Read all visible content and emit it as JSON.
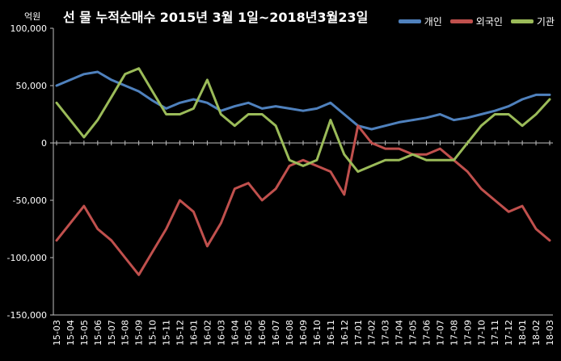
{
  "chart_data": {
    "type": "line",
    "title": "선 물  누적순매수  2015년 3월 1일~2018년3월23일",
    "ylabel": "억원",
    "ylim": [
      -150000,
      100000
    ],
    "yticks": [
      100000,
      50000,
      0,
      -50000,
      -100000,
      -150000
    ],
    "ytick_labels": [
      "100,000",
      "50,000",
      "0",
      "-50,000",
      "-100,000",
      "-150,000"
    ],
    "x": [
      "15-03",
      "15-04",
      "15-05",
      "15-06",
      "15-07",
      "15-08",
      "15-09",
      "15-10",
      "15-11",
      "15-12",
      "16-01",
      "16-02",
      "16-03",
      "16-04",
      "16-05",
      "16-06",
      "16-07",
      "16-08",
      "16-09",
      "16-10",
      "16-11",
      "16-12",
      "17-01",
      "17-02",
      "17-03",
      "17-04",
      "17-05",
      "17-06",
      "17-07",
      "17-08",
      "17-09",
      "17-10",
      "17-11",
      "17-12",
      "18-01",
      "18-02",
      "18-03"
    ],
    "legend_position": "top-right",
    "grid": false,
    "series": [
      {
        "name": "개인",
        "color": "#4f81bd",
        "values": [
          50000,
          55000,
          60000,
          62000,
          55000,
          50000,
          45000,
          37000,
          30000,
          35000,
          38000,
          35000,
          28000,
          32000,
          35000,
          30000,
          32000,
          30000,
          28000,
          30000,
          35000,
          25000,
          15000,
          12000,
          15000,
          18000,
          20000,
          22000,
          25000,
          20000,
          22000,
          25000,
          28000,
          32000,
          38000,
          42000,
          42000
        ]
      },
      {
        "name": "외국인",
        "color": "#c0504d",
        "values": [
          -85000,
          -70000,
          -55000,
          -75000,
          -85000,
          -100000,
          -115000,
          -95000,
          -75000,
          -50000,
          -60000,
          -90000,
          -70000,
          -40000,
          -35000,
          -50000,
          -40000,
          -20000,
          -15000,
          -20000,
          -25000,
          -45000,
          15000,
          0,
          -5000,
          -5000,
          -10000,
          -10000,
          -5000,
          -15000,
          -25000,
          -40000,
          -50000,
          -60000,
          -55000,
          -75000,
          -85000
        ]
      },
      {
        "name": "기관",
        "color": "#9bbb59",
        "values": [
          35000,
          20000,
          5000,
          20000,
          40000,
          60000,
          65000,
          45000,
          25000,
          25000,
          30000,
          55000,
          25000,
          15000,
          25000,
          25000,
          15000,
          -15000,
          -20000,
          -15000,
          20000,
          -10000,
          -25000,
          -20000,
          -15000,
          -15000,
          -10000,
          -15000,
          -15000,
          -15000,
          0,
          15000,
          25000,
          25000,
          15000,
          25000,
          38000
        ]
      }
    ]
  }
}
